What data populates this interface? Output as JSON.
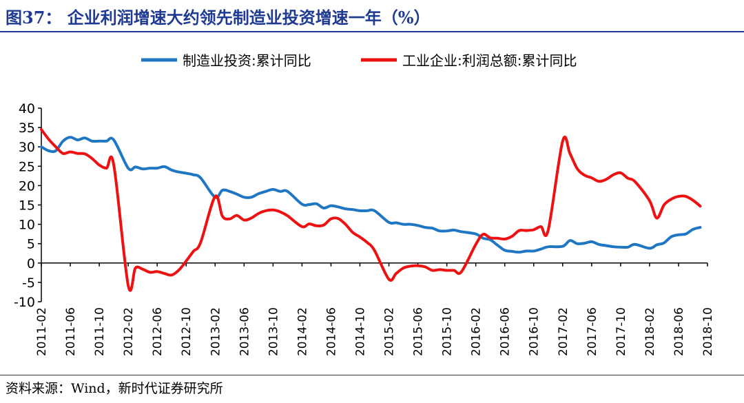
{
  "figure_title": "图37： 企业利润增速大约领先制造业投资增速一年（%）",
  "source_note": "资料来源：Wind，新时代证券研究所",
  "colors": {
    "title": "#1f3a93",
    "manufacturing": "#1f77c4",
    "profit": "#ee1111",
    "axis": "#000000"
  },
  "chart_data": {
    "type": "line",
    "title": "",
    "xlabel": "",
    "ylabel": "",
    "ylim": [
      -10,
      40
    ],
    "yticks": [
      -10,
      -5,
      0,
      5,
      10,
      15,
      20,
      25,
      30,
      35,
      40
    ],
    "xlim": [
      "2011-02",
      "2018-10"
    ],
    "xticks": [
      "2011-02",
      "2011-06",
      "2011-10",
      "2012-02",
      "2012-06",
      "2012-10",
      "2013-02",
      "2013-06",
      "2013-10",
      "2014-02",
      "2014-06",
      "2014-10",
      "2015-02",
      "2015-06",
      "2015-10",
      "2016-02",
      "2016-06",
      "2016-10",
      "2017-02",
      "2017-06",
      "2017-10",
      "2018-02",
      "2018-06",
      "2018-10"
    ],
    "grid": false,
    "legend_position": "top",
    "series": [
      {
        "name": "制造业投资:累计同比",
        "color": "#1f77c4",
        "points": [
          [
            "2011-02",
            30.0
          ],
          [
            "2011-03",
            29.0
          ],
          [
            "2011-04",
            29.0
          ],
          [
            "2011-05",
            31.5
          ],
          [
            "2011-06",
            32.5
          ],
          [
            "2011-07",
            31.8
          ],
          [
            "2011-08",
            32.3
          ],
          [
            "2011-09",
            31.5
          ],
          [
            "2011-10",
            31.5
          ],
          [
            "2011-11",
            31.5
          ],
          [
            "2011-12",
            31.8
          ],
          [
            "2012-02",
            24.5
          ],
          [
            "2012-03",
            24.8
          ],
          [
            "2012-04",
            24.3
          ],
          [
            "2012-05",
            24.5
          ],
          [
            "2012-06",
            24.5
          ],
          [
            "2012-07",
            24.9
          ],
          [
            "2012-08",
            24.0
          ],
          [
            "2012-09",
            23.5
          ],
          [
            "2012-10",
            23.2
          ],
          [
            "2012-11",
            22.8
          ],
          [
            "2012-12",
            22.0
          ],
          [
            "2013-02",
            17.0
          ],
          [
            "2013-03",
            18.8
          ],
          [
            "2013-04",
            18.5
          ],
          [
            "2013-05",
            17.8
          ],
          [
            "2013-06",
            17.0
          ],
          [
            "2013-07",
            17.0
          ],
          [
            "2013-08",
            17.9
          ],
          [
            "2013-09",
            18.5
          ],
          [
            "2013-10",
            19.0
          ],
          [
            "2013-11",
            18.5
          ],
          [
            "2013-12",
            18.5
          ],
          [
            "2014-02",
            15.2
          ],
          [
            "2014-03",
            15.1
          ],
          [
            "2014-04",
            15.3
          ],
          [
            "2014-05",
            14.2
          ],
          [
            "2014-06",
            14.8
          ],
          [
            "2014-07",
            14.5
          ],
          [
            "2014-08",
            14.0
          ],
          [
            "2014-09",
            13.8
          ],
          [
            "2014-10",
            13.5
          ],
          [
            "2014-11",
            13.5
          ],
          [
            "2014-12",
            13.5
          ],
          [
            "2015-02",
            10.5
          ],
          [
            "2015-03",
            10.4
          ],
          [
            "2015-04",
            10.0
          ],
          [
            "2015-05",
            10.0
          ],
          [
            "2015-06",
            9.7
          ],
          [
            "2015-07",
            9.2
          ],
          [
            "2015-08",
            9.0
          ],
          [
            "2015-09",
            8.3
          ],
          [
            "2015-10",
            8.3
          ],
          [
            "2015-11",
            8.5
          ],
          [
            "2015-12",
            8.1
          ],
          [
            "2016-02",
            7.5
          ],
          [
            "2016-03",
            6.4
          ],
          [
            "2016-04",
            6.0
          ],
          [
            "2016-05",
            4.6
          ],
          [
            "2016-06",
            3.3
          ],
          [
            "2016-07",
            3.0
          ],
          [
            "2016-08",
            2.8
          ],
          [
            "2016-09",
            3.1
          ],
          [
            "2016-10",
            3.1
          ],
          [
            "2016-11",
            3.6
          ],
          [
            "2016-12",
            4.2
          ],
          [
            "2017-02",
            4.3
          ],
          [
            "2017-03",
            5.8
          ],
          [
            "2017-04",
            5.0
          ],
          [
            "2017-05",
            5.1
          ],
          [
            "2017-06",
            5.5
          ],
          [
            "2017-07",
            4.8
          ],
          [
            "2017-08",
            4.5
          ],
          [
            "2017-09",
            4.2
          ],
          [
            "2017-10",
            4.1
          ],
          [
            "2017-11",
            4.1
          ],
          [
            "2017-12",
            4.8
          ],
          [
            "2018-02",
            3.8
          ],
          [
            "2018-03",
            4.7
          ],
          [
            "2018-04",
            5.2
          ],
          [
            "2018-05",
            6.8
          ],
          [
            "2018-06",
            7.3
          ],
          [
            "2018-07",
            7.5
          ],
          [
            "2018-08",
            8.7
          ],
          [
            "2018-09",
            9.2
          ]
        ]
      },
      {
        "name": "工业企业:利润总额:累计同比",
        "color": "#ee1111",
        "points": [
          [
            "2011-02",
            34.5
          ],
          [
            "2011-03",
            32.0
          ],
          [
            "2011-04",
            30.0
          ],
          [
            "2011-05",
            28.3
          ],
          [
            "2011-06",
            28.7
          ],
          [
            "2011-07",
            28.3
          ],
          [
            "2011-08",
            28.2
          ],
          [
            "2011-09",
            27.0
          ],
          [
            "2011-10",
            25.3
          ],
          [
            "2011-11",
            24.5
          ],
          [
            "2011-12",
            25.4
          ],
          [
            "2012-02",
            -5.8
          ],
          [
            "2012-03",
            -1.3
          ],
          [
            "2012-04",
            -1.6
          ],
          [
            "2012-05",
            -2.4
          ],
          [
            "2012-06",
            -2.2
          ],
          [
            "2012-07",
            -2.7
          ],
          [
            "2012-08",
            -3.1
          ],
          [
            "2012-09",
            -1.8
          ],
          [
            "2012-10",
            0.5
          ],
          [
            "2012-11",
            3.0
          ],
          [
            "2012-12",
            5.3
          ],
          [
            "2013-02",
            17.2
          ],
          [
            "2013-03",
            12.1
          ],
          [
            "2013-04",
            11.4
          ],
          [
            "2013-05",
            12.3
          ],
          [
            "2013-06",
            11.1
          ],
          [
            "2013-07",
            11.6
          ],
          [
            "2013-08",
            12.8
          ],
          [
            "2013-09",
            13.5
          ],
          [
            "2013-10",
            13.7
          ],
          [
            "2013-11",
            13.2
          ],
          [
            "2013-12",
            12.2
          ],
          [
            "2014-02",
            9.4
          ],
          [
            "2014-03",
            10.1
          ],
          [
            "2014-04",
            9.6
          ],
          [
            "2014-05",
            9.8
          ],
          [
            "2014-06",
            11.4
          ],
          [
            "2014-07",
            11.5
          ],
          [
            "2014-08",
            10.0
          ],
          [
            "2014-09",
            7.9
          ],
          [
            "2014-10",
            6.7
          ],
          [
            "2014-11",
            5.3
          ],
          [
            "2014-12",
            3.3
          ],
          [
            "2015-02",
            -4.2
          ],
          [
            "2015-03",
            -2.7
          ],
          [
            "2015-04",
            -1.3
          ],
          [
            "2015-05",
            -0.8
          ],
          [
            "2015-06",
            -0.7
          ],
          [
            "2015-07",
            -1.0
          ],
          [
            "2015-08",
            -1.9
          ],
          [
            "2015-09",
            -1.7
          ],
          [
            "2015-10",
            -1.9
          ],
          [
            "2015-11",
            -1.9
          ],
          [
            "2015-12",
            -2.3
          ],
          [
            "2016-02",
            4.8
          ],
          [
            "2016-03",
            7.4
          ],
          [
            "2016-04",
            6.5
          ],
          [
            "2016-05",
            6.4
          ],
          [
            "2016-06",
            6.2
          ],
          [
            "2016-07",
            6.9
          ],
          [
            "2016-08",
            8.4
          ],
          [
            "2016-09",
            8.4
          ],
          [
            "2016-10",
            8.6
          ],
          [
            "2016-11",
            9.4
          ],
          [
            "2016-12",
            8.5
          ],
          [
            "2017-02",
            31.5
          ],
          [
            "2017-03",
            28.3
          ],
          [
            "2017-04",
            24.4
          ],
          [
            "2017-05",
            22.7
          ],
          [
            "2017-06",
            22.0
          ],
          [
            "2017-07",
            21.1
          ],
          [
            "2017-08",
            21.6
          ],
          [
            "2017-09",
            22.8
          ],
          [
            "2017-10",
            23.3
          ],
          [
            "2017-11",
            21.9
          ],
          [
            "2017-12",
            21.0
          ],
          [
            "2018-02",
            16.1
          ],
          [
            "2018-03",
            11.6
          ],
          [
            "2018-04",
            15.0
          ],
          [
            "2018-05",
            16.5
          ],
          [
            "2018-06",
            17.2
          ],
          [
            "2018-07",
            17.2
          ],
          [
            "2018-08",
            16.2
          ],
          [
            "2018-09",
            14.7
          ]
        ]
      }
    ]
  }
}
